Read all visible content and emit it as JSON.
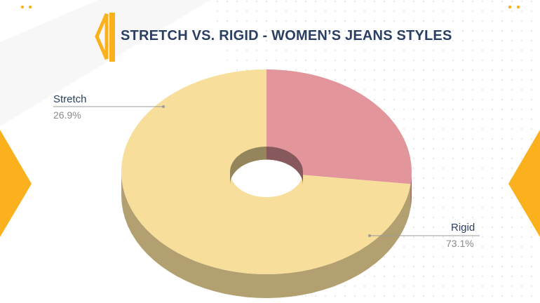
{
  "chart_data": {
    "type": "pie",
    "title": "STRETCH VS. RIGID - WOMEN’S JEANS STYLES",
    "slices": [
      {
        "label": "Stretch",
        "value": 26.9,
        "value_label": "26.9%",
        "color": "#e2959a"
      },
      {
        "label": "Rigid",
        "value": 73.1,
        "value_label": "73.1%",
        "color": "#f7de9b"
      }
    ],
    "style": "3d-donut",
    "accent_color": "#fbb11d"
  }
}
